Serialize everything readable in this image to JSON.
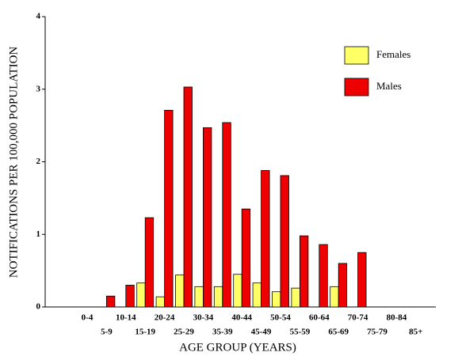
{
  "chart_data": {
    "type": "bar",
    "x_label": "AGE GROUP (YEARS)",
    "y_label": "NOTIFICATIONS PER 100,000 POPULATION",
    "categories": [
      "0-4",
      "5-9",
      "10-14",
      "15-19",
      "20-24",
      "25-29",
      "30-34",
      "35-39",
      "40-44",
      "45-49",
      "50-54",
      "55-59",
      "60-64",
      "65-69",
      "70-74",
      "75-79",
      "80-84",
      "85+"
    ],
    "series": [
      {
        "name": "Females",
        "color": "#ffff66",
        "values": [
          0,
          0,
          0,
          0.33,
          0.14,
          0.44,
          0.28,
          0.28,
          0.45,
          0.33,
          0.21,
          0.26,
          0,
          0.28,
          0,
          0,
          0,
          0
        ]
      },
      {
        "name": "Males",
        "color": "#ee0000",
        "values": [
          0,
          0.15,
          0.3,
          1.23,
          2.71,
          3.03,
          2.47,
          2.54,
          1.35,
          1.88,
          1.81,
          0.98,
          0.86,
          0.6,
          0.75,
          0,
          0,
          0
        ]
      }
    ],
    "ylim": [
      0,
      4
    ],
    "yticks": [
      0,
      1,
      2,
      3,
      4
    ],
    "grid": false,
    "legend": "top-right"
  }
}
